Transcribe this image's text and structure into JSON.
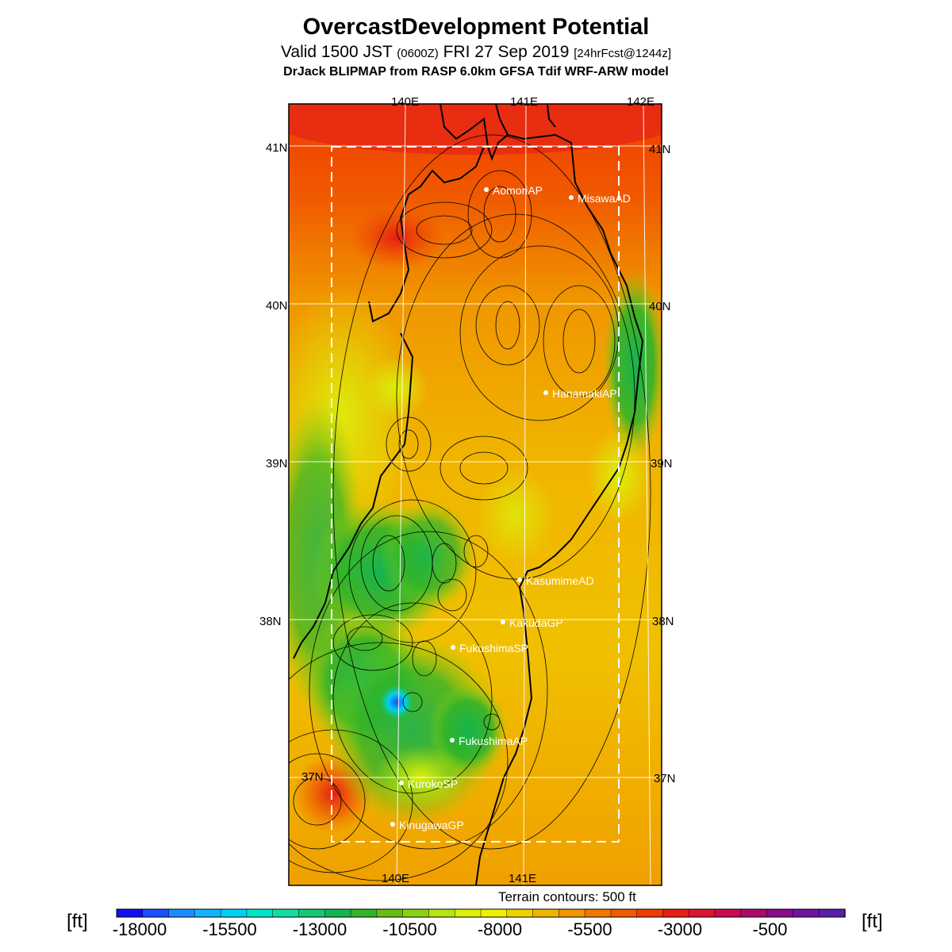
{
  "title": "OvercastDevelopment Potential",
  "subtitle": {
    "main_left": "Valid 1500 JST",
    "utc": "(0600Z)",
    "main_right": "FRI 27 Sep 2019",
    "forecast": "[24hrFcst@1244z]"
  },
  "model_line": "DrJack BLIPMAP from RASP 6.0km GFSA Tdif WRF-ARW model",
  "axes": {
    "top_lon_labels": [
      "140E",
      "141E",
      "142E"
    ],
    "bottom_lon_labels": [
      "140E",
      "141E"
    ],
    "left_lat_labels": [
      "41N",
      "40N",
      "39N",
      "38N",
      "37N"
    ],
    "right_lat_labels": [
      "41N",
      "40N",
      "39N",
      "38N",
      "37N"
    ]
  },
  "stations": [
    {
      "name": "AomoriAP"
    },
    {
      "name": "MisawaAD"
    },
    {
      "name": "HanamakiAP"
    },
    {
      "name": "KasumimeAD"
    },
    {
      "name": "KakudaGP"
    },
    {
      "name": "FukushimaSP"
    },
    {
      "name": "FukushimaAP"
    },
    {
      "name": "KurokoSP"
    },
    {
      "name": "KinugawaGP"
    }
  ],
  "terrain_note": "Terrain contours: 500 ft",
  "colorbar": {
    "unit": "[ft]",
    "labels": [
      "-18000",
      "-15500",
      "-13000",
      "-10500",
      "-8000",
      "-5500",
      "-3000",
      "-500"
    ],
    "colors": [
      "#1010f0",
      "#1a50ff",
      "#1a8cff",
      "#14b4ff",
      "#00d2f0",
      "#00e6c8",
      "#14dca0",
      "#14c878",
      "#14b450",
      "#32b428",
      "#64be14",
      "#8cd214",
      "#b4e614",
      "#dcf00a",
      "#f0f000",
      "#f0d200",
      "#f0b400",
      "#f09600",
      "#f07800",
      "#f05a00",
      "#f03c00",
      "#e61e14",
      "#dc1432",
      "#c80a50",
      "#aa0a6e",
      "#8c0a8c",
      "#6e14a0",
      "#5a1eaa"
    ]
  }
}
